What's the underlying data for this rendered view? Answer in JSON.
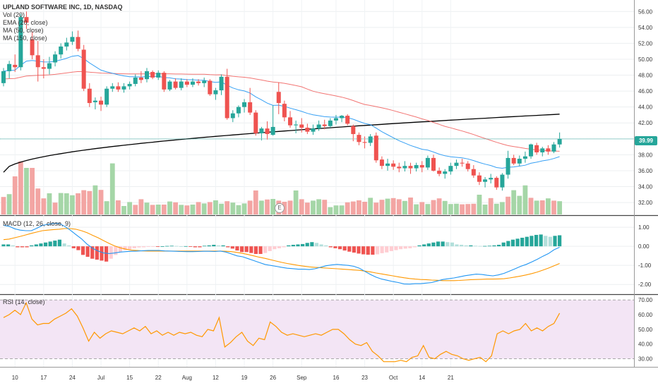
{
  "chart_data": [
    {
      "type": "candlestick",
      "title": "UPLAND SOFTWARE INC, 1D, NASDAQ",
      "legend": [
        "Vol (20)",
        "EMA (20, close)",
        "MA (50, close)",
        "MA (150, close)"
      ],
      "y_ticks": [
        "56.00",
        "54.00",
        "52.00",
        "50.00",
        "48.00",
        "46.00",
        "44.00",
        "42.00",
        "40.00",
        "38.00",
        "36.00",
        "34.00",
        "32.00"
      ],
      "ylim": [
        30.5,
        57
      ],
      "last_price": "39.99",
      "x_ticks": [
        "10",
        "17",
        "24",
        "Jul",
        "15",
        "22",
        "Aug",
        "12",
        "19",
        "26",
        "Sep",
        "16",
        "23",
        "Oct",
        "14",
        "21"
      ],
      "colors": {
        "up": "#26a69a",
        "down": "#ef5350",
        "ema": "#2196f3",
        "ma50": "#ef5350",
        "ma150": "#000000"
      },
      "ohlc": [
        [
          47.0,
          48.9,
          46.6,
          48.5
        ],
        [
          48.5,
          49.8,
          47.6,
          49.4
        ],
        [
          49.3,
          50.6,
          48.4,
          49.0
        ],
        [
          49.0,
          55.7,
          48.6,
          55.3
        ],
        [
          55.3,
          56.0,
          53.8,
          54.6
        ],
        [
          52.5,
          53.5,
          50.0,
          50.5
        ],
        [
          50.5,
          52.3,
          47.2,
          49.0
        ],
        [
          49.0,
          50.0,
          47.6,
          48.8
        ],
        [
          48.8,
          50.3,
          48.1,
          49.5
        ],
        [
          49.6,
          51.0,
          49.1,
          50.6
        ],
        [
          50.6,
          52.0,
          50.1,
          51.6
        ],
        [
          51.6,
          52.7,
          51.1,
          52.1
        ],
        [
          52.2,
          53.5,
          51.8,
          52.8
        ],
        [
          52.8,
          53.6,
          51.0,
          51.3
        ],
        [
          51.2,
          51.8,
          46.0,
          46.3
        ],
        [
          46.3,
          47.0,
          44.0,
          44.5
        ],
        [
          44.6,
          45.2,
          43.7,
          44.8
        ],
        [
          44.8,
          45.3,
          43.5,
          44.3
        ],
        [
          44.3,
          46.6,
          44.0,
          46.3
        ],
        [
          46.3,
          47.0,
          45.9,
          46.6
        ],
        [
          46.6,
          47.1,
          45.9,
          46.2
        ],
        [
          46.2,
          47.0,
          45.8,
          46.6
        ],
        [
          46.6,
          47.2,
          46.2,
          46.9
        ],
        [
          46.9,
          48.1,
          46.6,
          47.7
        ],
        [
          47.7,
          48.5,
          47.0,
          47.4
        ],
        [
          47.5,
          48.9,
          47.1,
          48.5
        ],
        [
          48.4,
          48.6,
          47.5,
          47.7
        ],
        [
          47.7,
          48.6,
          47.4,
          48.3
        ],
        [
          48.3,
          48.5,
          45.9,
          46.2
        ],
        [
          46.2,
          47.4,
          46.0,
          47.2
        ],
        [
          47.2,
          47.6,
          46.2,
          46.4
        ],
        [
          46.4,
          47.6,
          46.1,
          47.2
        ],
        [
          47.2,
          47.5,
          46.5,
          46.8
        ],
        [
          46.8,
          47.6,
          46.5,
          47.2
        ],
        [
          47.2,
          47.5,
          46.7,
          47.0
        ],
        [
          47.0,
          47.7,
          46.5,
          47.3
        ],
        [
          47.3,
          47.5,
          45.4,
          45.6
        ],
        [
          45.6,
          46.4,
          44.9,
          46.1
        ],
        [
          46.1,
          48.1,
          45.5,
          47.8
        ],
        [
          47.8,
          48.8,
          42.4,
          42.6
        ],
        [
          42.6,
          43.6,
          42.1,
          43.2
        ],
        [
          43.2,
          44.2,
          42.7,
          44.0
        ],
        [
          44.0,
          45.0,
          43.3,
          44.6
        ],
        [
          44.6,
          46.4,
          43.0,
          43.3
        ],
        [
          43.3,
          43.6,
          40.4,
          40.7
        ],
        [
          40.7,
          41.5,
          39.8,
          41.3
        ],
        [
          41.3,
          42.2,
          39.9,
          40.6
        ],
        [
          40.5,
          44.2,
          40.4,
          41.5
        ],
        [
          45.9,
          47.1,
          43.1,
          44.5
        ],
        [
          44.4,
          44.8,
          42.2,
          42.7
        ],
        [
          42.7,
          43.5,
          41.4,
          41.7
        ],
        [
          41.7,
          42.3,
          40.7,
          41.8
        ],
        [
          41.8,
          42.6,
          40.8,
          41.4
        ],
        [
          41.4,
          41.9,
          40.6,
          40.9
        ],
        [
          40.9,
          41.8,
          40.5,
          41.3
        ],
        [
          41.3,
          42.3,
          41.0,
          41.8
        ],
        [
          41.8,
          42.4,
          41.2,
          41.6
        ],
        [
          41.6,
          42.6,
          41.4,
          42.3
        ],
        [
          42.3,
          43.0,
          41.8,
          42.6
        ],
        [
          42.6,
          43.0,
          42.1,
          42.9
        ],
        [
          42.9,
          43.1,
          41.7,
          41.9
        ],
        [
          41.6,
          41.8,
          39.7,
          40.6
        ],
        [
          40.5,
          40.8,
          39.2,
          39.6
        ],
        [
          39.6,
          40.3,
          38.8,
          39.5
        ],
        [
          39.5,
          40.6,
          39.1,
          40.3
        ],
        [
          40.4,
          40.8,
          37.0,
          37.3
        ],
        [
          37.4,
          37.8,
          36.2,
          36.6
        ],
        [
          36.6,
          37.5,
          36.0,
          36.9
        ],
        [
          36.9,
          37.3,
          36.1,
          36.5
        ],
        [
          36.5,
          37.0,
          35.8,
          36.3
        ],
        [
          36.3,
          37.2,
          35.9,
          36.6
        ],
        [
          36.6,
          37.0,
          35.6,
          36.3
        ],
        [
          36.3,
          37.0,
          35.9,
          36.7
        ],
        [
          36.7,
          37.2,
          35.8,
          36.4
        ],
        [
          36.4,
          37.9,
          36.1,
          37.6
        ],
        [
          37.6,
          38.0,
          35.9,
          36.0
        ],
        [
          36.0,
          36.4,
          35.3,
          35.6
        ],
        [
          35.6,
          36.2,
          35.0,
          35.9
        ],
        [
          35.9,
          37.0,
          35.5,
          36.6
        ],
        [
          36.6,
          37.4,
          36.2,
          37.0
        ],
        [
          37.0,
          37.5,
          36.5,
          36.9
        ],
        [
          36.9,
          37.2,
          35.9,
          36.2
        ],
        [
          36.2,
          36.7,
          35.1,
          35.4
        ],
        [
          35.4,
          35.8,
          34.2,
          34.6
        ],
        [
          34.6,
          35.2,
          33.9,
          34.9
        ],
        [
          34.9,
          35.6,
          34.4,
          35.1
        ],
        [
          35.1,
          35.3,
          33.6,
          33.9
        ],
        [
          33.9,
          35.7,
          33.5,
          35.5
        ],
        [
          35.5,
          38.5,
          35.0,
          37.6
        ],
        [
          37.6,
          38.0,
          36.7,
          36.9
        ],
        [
          36.9,
          37.9,
          36.6,
          37.5
        ],
        [
          37.5,
          38.4,
          37.0,
          37.8
        ],
        [
          37.8,
          39.4,
          37.5,
          39.3
        ],
        [
          39.2,
          39.5,
          38.0,
          38.3
        ],
        [
          38.3,
          39.0,
          37.8,
          38.8
        ],
        [
          38.8,
          39.2,
          38.0,
          38.4
        ],
        [
          38.4,
          39.6,
          38.2,
          39.3
        ],
        [
          39.3,
          40.8,
          38.9,
          39.99
        ]
      ],
      "volume": [
        6.2,
        7.2,
        13.5,
        18.8,
        16.5,
        16.5,
        9.2,
        5.7,
        7.5,
        4.2,
        7.6,
        7.5,
        6.8,
        7.5,
        8.6,
        8.3,
        10.3,
        8.7,
        4.7,
        18.1,
        5.0,
        3.0,
        4.4,
        3.4,
        5.4,
        4.2,
        3.4,
        3.5,
        3.5,
        4.6,
        4.3,
        3.4,
        3.2,
        3.5,
        4.4,
        3.9,
        4.4,
        5.0,
        3.8,
        4.7,
        4.2,
        3.3,
        3.9,
        4.9,
        8.5,
        4.9,
        5.3,
        5.5,
        4.9,
        4.5,
        4.9,
        8.5,
        5.4,
        4.2,
        4.9,
        5.4,
        5.2,
        2.6,
        3.2,
        3.2,
        4.3,
        4.6,
        5.0,
        4.5,
        5.9,
        4.2,
        5.2,
        5.6,
        5.8,
        5.4,
        4.8,
        6.0,
        3.6,
        4.4,
        3.7,
        5.1,
        5.7,
        4.8,
        3.7,
        3.8,
        3.6,
        3.7,
        3.8,
        7.0,
        3.5,
        5.8,
        3.8,
        4.4,
        6.3,
        8.6,
        6.6,
        10.3,
        5.9,
        4.9,
        5.0,
        5.7,
        4.9,
        4.7,
        3.8,
        4.7,
        6.4
      ],
      "volume_up": [
        false,
        true,
        false,
        false,
        true,
        false,
        false,
        false,
        true,
        false,
        true,
        true,
        true,
        false,
        false,
        false,
        true,
        false,
        true,
        true,
        false,
        true,
        true,
        false,
        false,
        true,
        false,
        true,
        false,
        true,
        false,
        true,
        false,
        true,
        false,
        true,
        false,
        true,
        true,
        false,
        true,
        true,
        true,
        false,
        false,
        true,
        false,
        true,
        false,
        false,
        false,
        true,
        false,
        false,
        true,
        true,
        false,
        true,
        true,
        true,
        false,
        false,
        false,
        false,
        true,
        false,
        false,
        true,
        false,
        false,
        true,
        false,
        true,
        false,
        true,
        false,
        false,
        true,
        true,
        true,
        false,
        false,
        false,
        true,
        true,
        false,
        true,
        true,
        false,
        true,
        true,
        true,
        false,
        true,
        false,
        true,
        false,
        true,
        false,
        true,
        true
      ]
    },
    {
      "type": "line+histogram",
      "title": "MACD (12, 26, close, 9)",
      "y_ticks": [
        "1.00",
        "0.00",
        "-1.00",
        "-2.00"
      ],
      "ylim": [
        -2.4,
        1.45
      ],
      "colors": {
        "macd": "#2196f3",
        "signal": "#ff9800",
        "hist_up_strong": "#26a69a",
        "hist_up_weak": "#b2dfdb",
        "hist_down_strong": "#ef5350",
        "hist_down_weak": "#ffcdd2"
      },
      "macd": [
        1.1,
        1.05,
        0.92,
        0.85,
        0.82,
        0.82,
        0.95,
        1.1,
        1.15,
        1.2,
        1.2,
        1.05,
        0.85,
        0.62,
        0.4,
        0.12,
        -0.1,
        -0.25,
        -0.35,
        -0.38,
        -0.35,
        -0.3,
        -0.28,
        -0.26,
        -0.25,
        -0.23,
        -0.22,
        -0.22,
        -0.22,
        -0.24,
        -0.25,
        -0.26,
        -0.27,
        -0.28,
        -0.28,
        -0.27,
        -0.26,
        -0.26,
        -0.27,
        -0.25,
        -0.3,
        -0.4,
        -0.5,
        -0.55,
        -0.65,
        -0.75,
        -0.85,
        -0.95,
        -1.0,
        -1.05,
        -1.1,
        -1.15,
        -1.17,
        -1.2,
        -1.2,
        -1.22,
        -1.18,
        -1.1,
        -1.02,
        -0.98,
        -0.95,
        -0.98,
        -1.0,
        -1.05,
        -1.15,
        -1.32,
        -1.48,
        -1.62,
        -1.72,
        -1.78,
        -1.85,
        -1.9,
        -1.97,
        -1.98,
        -1.96,
        -1.96,
        -1.93,
        -1.9,
        -1.82,
        -1.74,
        -1.7,
        -1.66,
        -1.6,
        -1.54,
        -1.5,
        -1.46,
        -1.48,
        -1.52,
        -1.55,
        -1.5,
        -1.42,
        -1.3,
        -1.18,
        -1.05,
        -0.95,
        -0.82,
        -0.68,
        -0.52,
        -0.38,
        -0.18,
        -0.05
      ],
      "signal": [
        0.35,
        0.38,
        0.45,
        0.52,
        0.6,
        0.68,
        0.75,
        0.82,
        0.85,
        0.88,
        0.9,
        0.93,
        0.93,
        0.9,
        0.82,
        0.72,
        0.58,
        0.45,
        0.3,
        0.15,
        0.02,
        -0.08,
        -0.15,
        -0.2,
        -0.22,
        -0.24,
        -0.25,
        -0.25,
        -0.25,
        -0.25,
        -0.25,
        -0.25,
        -0.25,
        -0.25,
        -0.25,
        -0.25,
        -0.25,
        -0.25,
        -0.25,
        -0.25,
        -0.26,
        -0.28,
        -0.32,
        -0.37,
        -0.43,
        -0.5,
        -0.57,
        -0.63,
        -0.7,
        -0.77,
        -0.84,
        -0.9,
        -0.95,
        -1.0,
        -1.04,
        -1.08,
        -1.1,
        -1.12,
        -1.14,
        -1.16,
        -1.18,
        -1.2,
        -1.22,
        -1.24,
        -1.26,
        -1.3,
        -1.34,
        -1.4,
        -1.45,
        -1.5,
        -1.55,
        -1.6,
        -1.65,
        -1.69,
        -1.72,
        -1.74,
        -1.75,
        -1.77,
        -1.78,
        -1.8,
        -1.8,
        -1.8,
        -1.79,
        -1.77,
        -1.75,
        -1.74,
        -1.73,
        -1.72,
        -1.72,
        -1.71,
        -1.7,
        -1.66,
        -1.61,
        -1.56,
        -1.5,
        -1.43,
        -1.35,
        -1.25,
        -1.14,
        -1.02,
        -0.9
      ],
      "histogram": [
        0.1,
        0.1,
        0.05,
        -0.05,
        -0.05,
        -0.05,
        0.05,
        0.1,
        0.15,
        0.2,
        0.25,
        0.3,
        0.35,
        0.15,
        0.05,
        -0.1,
        -0.2,
        -0.45,
        -0.55,
        -0.65,
        -0.7,
        -0.75,
        -0.8,
        -0.65,
        -0.45,
        -0.3,
        -0.2,
        -0.15,
        -0.1,
        -0.06,
        -0.05,
        -0.03,
        -0.02,
        -0.02,
        0.0,
        0.02,
        0.03,
        0.02,
        0.0,
        0.01,
        -0.03,
        -0.05,
        -0.05,
        0.03,
        0.05,
        0.08,
        0.05,
        0.05,
        -0.05,
        -0.12,
        -0.22,
        -0.3,
        -0.3,
        -0.35,
        -0.4,
        -0.4,
        -0.35,
        -0.25,
        -0.15,
        -0.1,
        -0.05,
        0.05,
        0.08,
        0.1,
        0.12,
        0.18,
        0.22,
        0.18,
        0.1,
        0.05,
        -0.05,
        -0.1,
        -0.15,
        -0.22,
        -0.28,
        -0.33,
        -0.38,
        -0.42,
        -0.44,
        -0.44,
        -0.42,
        -0.36,
        -0.32,
        -0.25,
        -0.2,
        -0.15,
        -0.12,
        -0.1,
        -0.05,
        0.05,
        0.1,
        0.15,
        0.2,
        0.25,
        0.25,
        0.22,
        0.2,
        0.1,
        0.08,
        0.05,
        0.05,
        0.03,
        0.02,
        0.02,
        0.03,
        0.05,
        0.08,
        0.2,
        0.28,
        0.35,
        0.4,
        0.45,
        0.5,
        0.55,
        0.6,
        0.62,
        0.55,
        0.5,
        0.55,
        0.58
      ]
    },
    {
      "type": "line",
      "title": "RSI (14, close)",
      "y_ticks": [
        "70.00",
        "60.00",
        "50.00",
        "40.00",
        "30.00"
      ],
      "ylim": [
        25,
        72
      ],
      "band": [
        30,
        70
      ],
      "colors": {
        "rsi": "#ff9800",
        "band": "#f3e5f5"
      },
      "rsi": [
        58,
        60,
        63,
        60,
        68,
        57,
        53,
        54,
        54,
        57,
        59,
        61,
        64,
        59,
        51,
        42,
        48,
        44,
        47,
        49,
        48,
        47,
        49,
        51,
        49,
        52,
        47,
        49,
        46,
        48,
        46,
        48,
        47,
        48,
        46,
        45,
        50,
        49,
        58,
        38,
        41,
        45,
        48,
        42,
        39,
        44,
        43,
        55,
        52,
        48,
        46,
        47,
        46,
        45,
        46,
        47,
        46,
        48,
        50,
        50,
        47,
        43,
        40,
        39,
        41,
        35,
        32,
        28,
        28,
        28,
        29,
        28,
        31,
        32,
        39,
        31,
        30,
        33,
        35,
        33,
        32,
        30,
        29,
        30,
        31,
        28,
        32,
        47,
        49,
        47,
        49,
        50,
        54,
        49,
        51,
        49,
        52,
        54,
        61
      ]
    }
  ],
  "x_axis_labels": [
    "10",
    "17",
    "24",
    "Jul",
    "15",
    "22",
    "Aug",
    "12",
    "19",
    "26",
    "Sep",
    "16",
    "23",
    "Oct",
    "14",
    "21"
  ],
  "event_marker_label": "E"
}
